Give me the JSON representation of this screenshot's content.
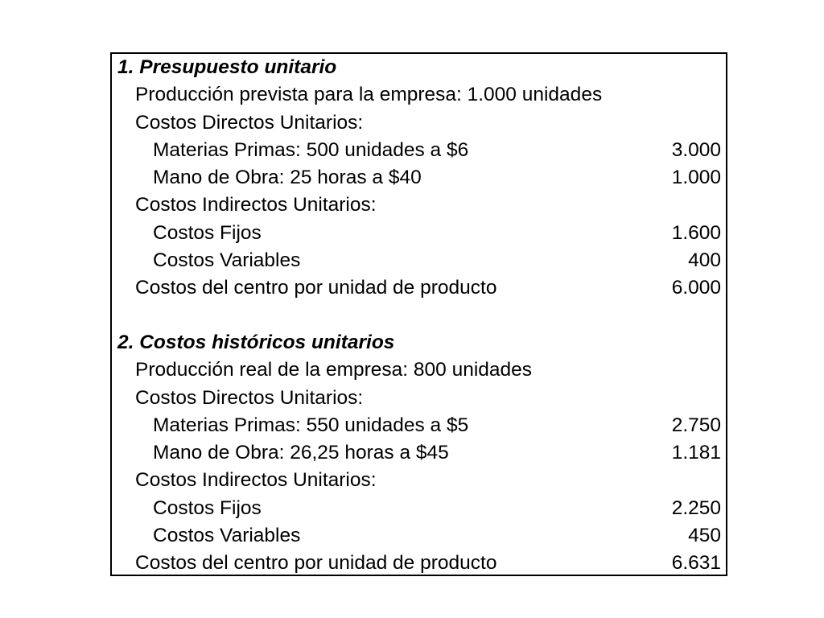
{
  "presupuesto": {
    "title": "1. Presupuesto unitario",
    "rows": [
      {
        "label": "Producción prevista para la empresa: 1.000 unidades",
        "value": ""
      },
      {
        "label": "Costos Directos Unitarios:",
        "value": ""
      },
      {
        "label": "Materias Primas: 500 unidades a $6",
        "value": "3.000"
      },
      {
        "label": "Mano de Obra: 25 horas a $40",
        "value": "1.000"
      },
      {
        "label": "Costos Indirectos Unitarios:",
        "value": ""
      },
      {
        "label": "Costos Fijos",
        "value": "1.600"
      },
      {
        "label": "Costos Variables",
        "value": "400"
      },
      {
        "label": "Costos del centro por unidad de producto",
        "value": "6.000"
      }
    ]
  },
  "historicos": {
    "title": "2. Costos históricos unitarios",
    "rows": [
      {
        "label": "Producción real de la empresa: 800 unidades",
        "value": ""
      },
      {
        "label": "Costos Directos Unitarios:",
        "value": ""
      },
      {
        "label": "Materias Primas: 550 unidades a $5",
        "value": "2.750"
      },
      {
        "label": "Mano de Obra: 26,25 horas a $45",
        "value": "1.181"
      },
      {
        "label": "Costos Indirectos Unitarios:",
        "value": ""
      },
      {
        "label": "Costos Fijos",
        "value": "2.250"
      },
      {
        "label": "Costos Variables",
        "value": "450"
      },
      {
        "label": "Costos del centro por unidad de producto",
        "value": "6.631"
      }
    ]
  }
}
